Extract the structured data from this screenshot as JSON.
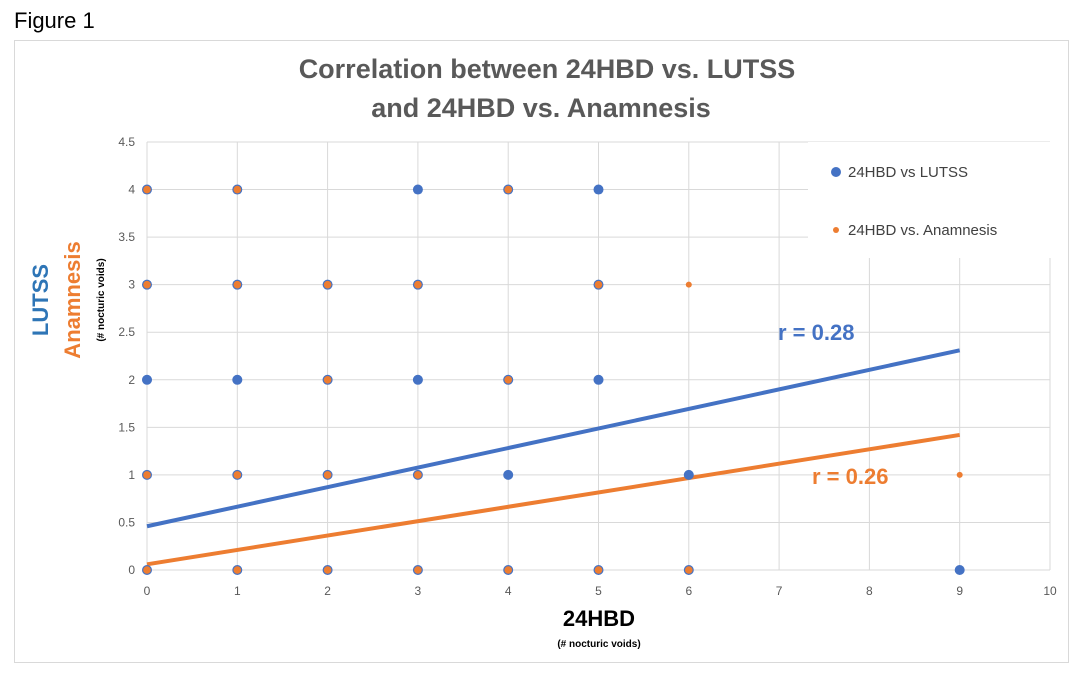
{
  "figure_label": "Figure 1",
  "chart_data": {
    "type": "scatter",
    "title_lines": [
      "Correlation between 24HBD vs. LUTSS",
      "and 24HBD vs. Anamnesis"
    ],
    "xlabel": "24HBD",
    "xlabel_sub": "(# nocturic voids)",
    "ylabel_primary": "LUTSS",
    "ylabel_secondary": "Anamnesis",
    "ylabel_sub": "(# nocturic voids)",
    "xlim": [
      0,
      10
    ],
    "ylim": [
      0,
      4.5
    ],
    "x_ticks": [
      "0",
      "1",
      "2",
      "3",
      "4",
      "5",
      "6",
      "7",
      "8",
      "9",
      "10"
    ],
    "y_ticks": [
      "0",
      "0.5",
      "1",
      "1.5",
      "2",
      "2.5",
      "3",
      "3.5",
      "4",
      "4.5"
    ],
    "grid": true,
    "legend_position": "top-right",
    "series": [
      {
        "name": "24HBD vs LUTSS",
        "color": "#4472c4",
        "points": [
          [
            0,
            4
          ],
          [
            1,
            4
          ],
          [
            3,
            4
          ],
          [
            4,
            4
          ],
          [
            5,
            4
          ],
          [
            0,
            3
          ],
          [
            1,
            3
          ],
          [
            2,
            3
          ],
          [
            3,
            3
          ],
          [
            5,
            3
          ],
          [
            0,
            2
          ],
          [
            1,
            2
          ],
          [
            2,
            2
          ],
          [
            3,
            2
          ],
          [
            4,
            2
          ],
          [
            5,
            2
          ],
          [
            0,
            1
          ],
          [
            1,
            1
          ],
          [
            2,
            1
          ],
          [
            3,
            1
          ],
          [
            4,
            1
          ],
          [
            6,
            1
          ],
          [
            0,
            0
          ],
          [
            1,
            0
          ],
          [
            2,
            0
          ],
          [
            3,
            0
          ],
          [
            4,
            0
          ],
          [
            5,
            0
          ],
          [
            6,
            0
          ],
          [
            9,
            0
          ]
        ],
        "trendline": {
          "x": [
            0,
            9
          ],
          "y": [
            0.46,
            2.31
          ]
        },
        "r_label": "r = 0.28"
      },
      {
        "name": "24HBD vs. Anamnesis",
        "color": "#ed7d31",
        "points": [
          [
            0,
            4
          ],
          [
            1,
            4
          ],
          [
            4,
            4
          ],
          [
            0,
            3
          ],
          [
            1,
            3
          ],
          [
            2,
            3
          ],
          [
            3,
            3
          ],
          [
            5,
            3
          ],
          [
            6,
            3
          ],
          [
            2,
            2
          ],
          [
            4,
            2
          ],
          [
            0,
            1
          ],
          [
            1,
            1
          ],
          [
            2,
            1
          ],
          [
            3,
            1
          ],
          [
            9,
            1
          ],
          [
            0,
            0
          ],
          [
            1,
            0
          ],
          [
            2,
            0
          ],
          [
            3,
            0
          ],
          [
            4,
            0
          ],
          [
            5,
            0
          ],
          [
            6,
            0
          ]
        ],
        "trendline": {
          "x": [
            0,
            9
          ],
          "y": [
            0.06,
            1.42
          ]
        },
        "r_label": "r = 0.26"
      }
    ]
  }
}
